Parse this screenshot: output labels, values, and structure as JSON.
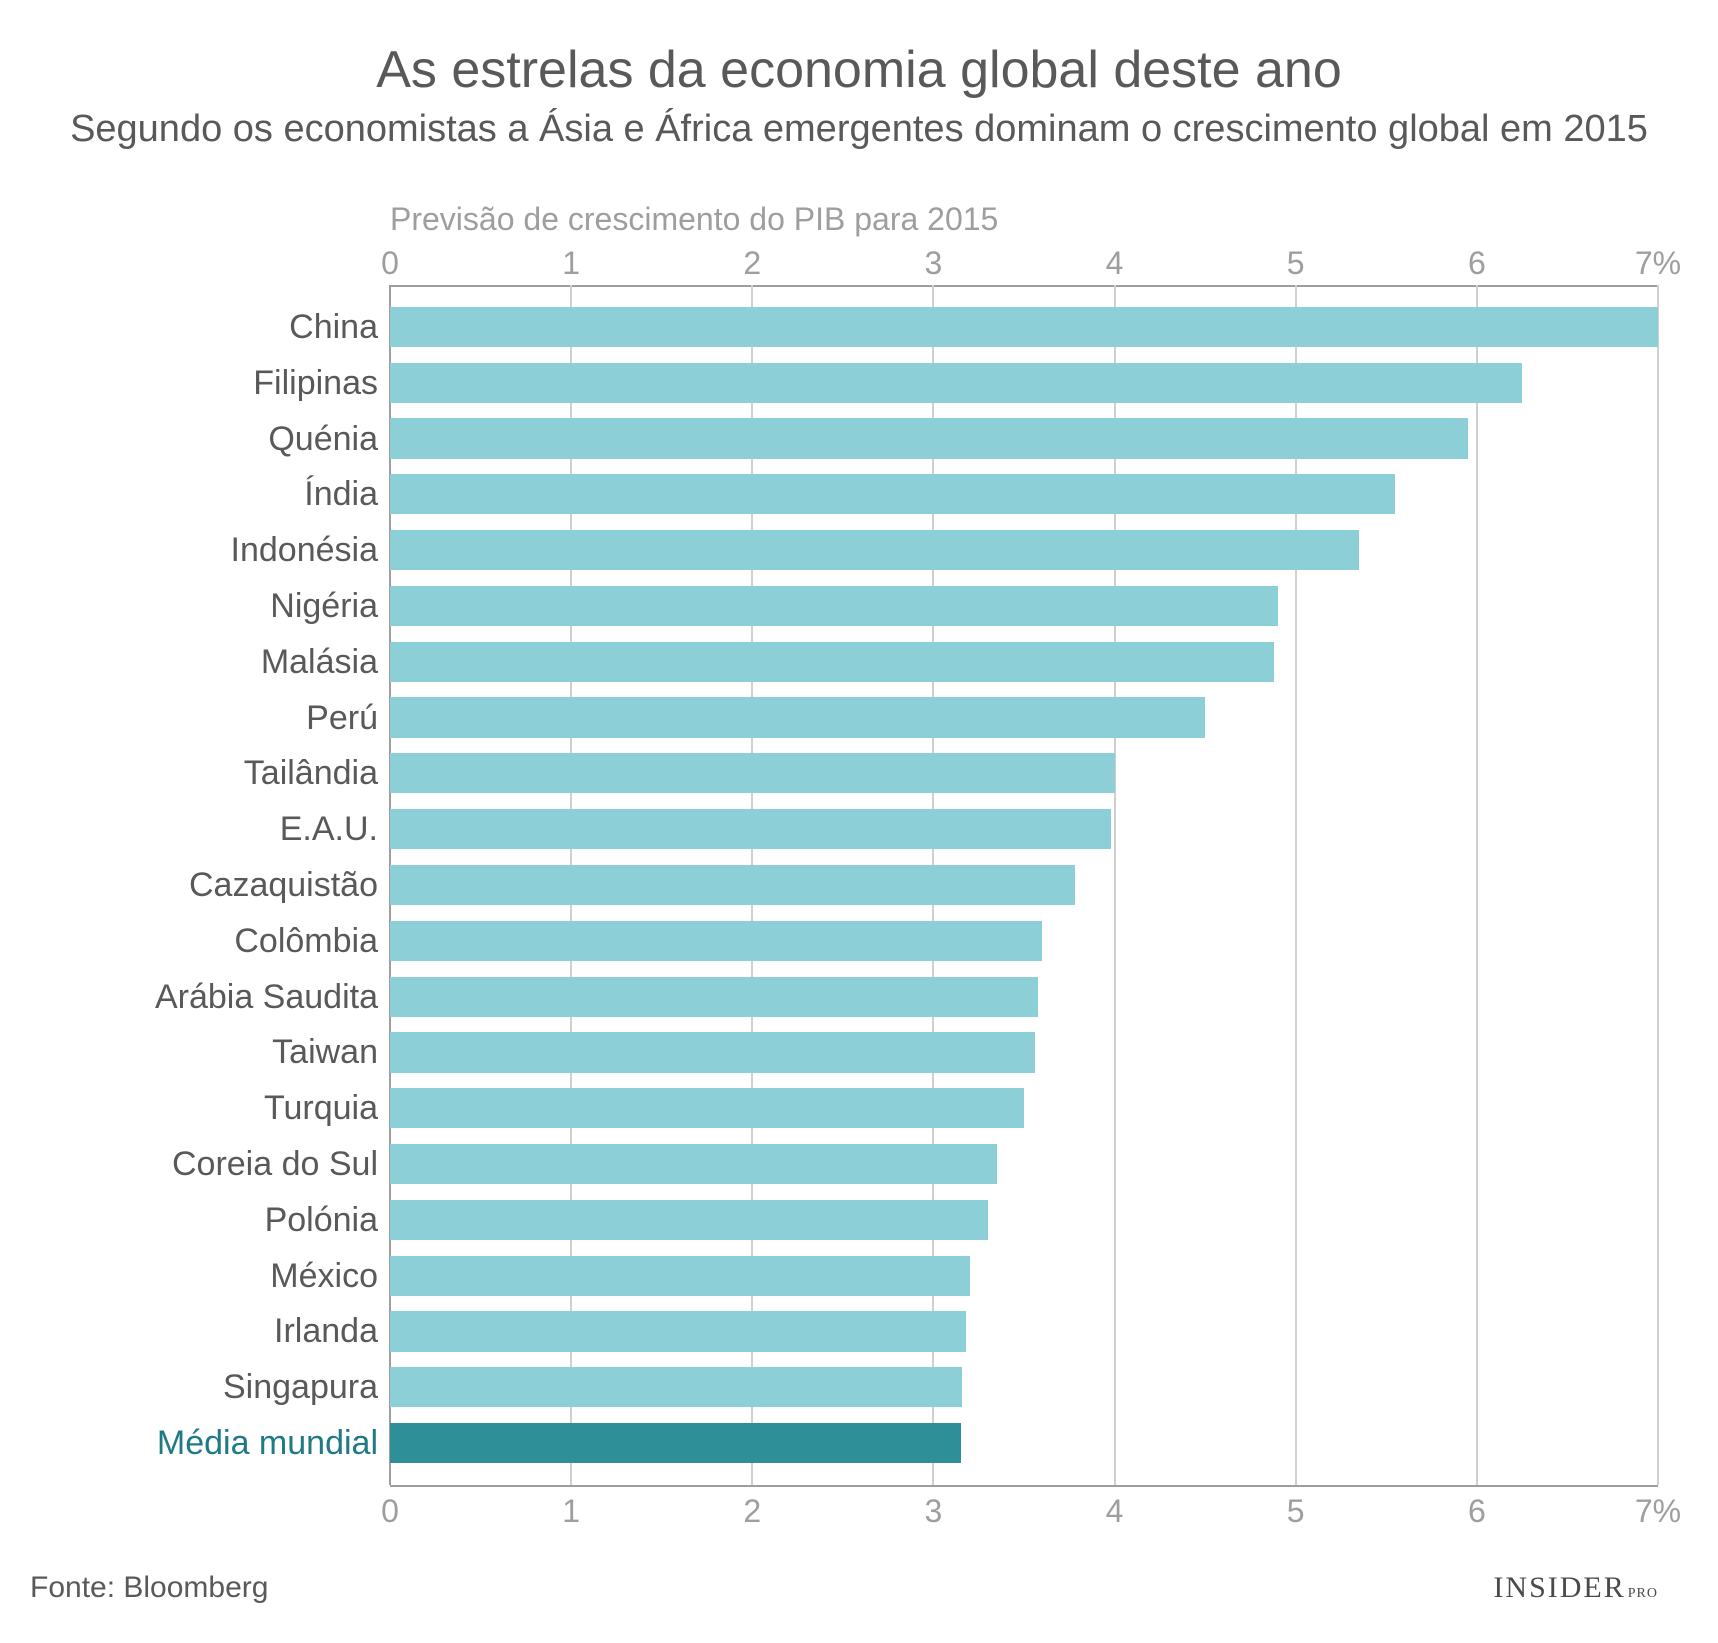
{
  "header": {
    "title": "As estrelas da economia global deste ano",
    "subtitle": "Segundo os economistas a Ásia e África emergentes dominam o crescimento global em 2015"
  },
  "chart": {
    "type": "bar-horizontal",
    "axis_title": "Previsão de crescimento do PIB para 2015",
    "xlim": [
      0,
      7
    ],
    "xtick_step": 1,
    "xtick_suffix_last": "%",
    "axis_title_fontsize": 32,
    "tick_fontsize": 32,
    "label_fontsize": 34,
    "bar_color": "#8ccfd6",
    "highlight_bar_color": "#2f8f99",
    "highlight_label_color": "#1f7a86",
    "label_color": "#595959",
    "gridline_color": "#d0d0d0",
    "axis_line_color": "#9e9e9e",
    "background_color": "#ffffff",
    "bar_gap_ratio": 0.28,
    "data": [
      {
        "label": "China",
        "value": 7.0
      },
      {
        "label": "Filipinas",
        "value": 6.25
      },
      {
        "label": "Quénia",
        "value": 5.95
      },
      {
        "label": "Índia",
        "value": 5.55
      },
      {
        "label": "Indonésia",
        "value": 5.35
      },
      {
        "label": "Nigéria",
        "value": 4.9
      },
      {
        "label": "Malásia",
        "value": 4.88
      },
      {
        "label": "Perú",
        "value": 4.5
      },
      {
        "label": "Tailândia",
        "value": 4.0
      },
      {
        "label": "E.A.U.",
        "value": 3.98
      },
      {
        "label": "Cazaquistão",
        "value": 3.78
      },
      {
        "label": "Colômbia",
        "value": 3.6
      },
      {
        "label": "Arábia Saudita",
        "value": 3.58
      },
      {
        "label": "Taiwan",
        "value": 3.56
      },
      {
        "label": "Turquia",
        "value": 3.5
      },
      {
        "label": "Coreia do Sul",
        "value": 3.35
      },
      {
        "label": "Polónia",
        "value": 3.3
      },
      {
        "label": "México",
        "value": 3.2
      },
      {
        "label": "Irlanda",
        "value": 3.18
      },
      {
        "label": "Singapura",
        "value": 3.16
      },
      {
        "label": "Média mundial",
        "value": 3.15,
        "highlight": true
      }
    ]
  },
  "footer": {
    "source": "Fonte: Bloomberg",
    "brand_main": "INSIDER",
    "brand_sub": "PRO"
  }
}
